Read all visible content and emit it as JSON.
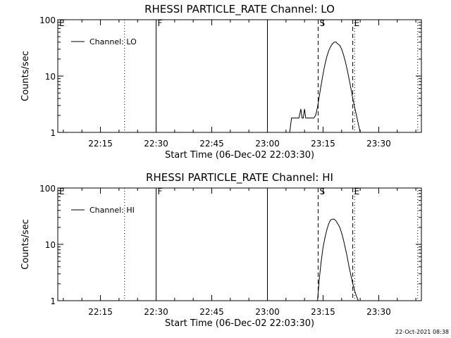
{
  "footer": {
    "timestamp": "22-Oct-2021 08:38"
  },
  "chart_data": [
    {
      "type": "line",
      "title": "RHESSI PARTICLE_RATE Channel: LO",
      "xlabel": "Start Time (06-Dec-02 22:03:30)",
      "ylabel": "Counts/sec",
      "yscale": "log",
      "ylim": [
        1,
        100
      ],
      "xlim": [
        "22:03:30",
        "23:41:30"
      ],
      "x_ticks": [
        "22:15",
        "22:30",
        "22:45",
        "23:00",
        "23:15",
        "23:30"
      ],
      "y_ticks": [
        "1",
        "10",
        "100"
      ],
      "legend": {
        "placement": "top-left",
        "entries": [
          "Channel: LO"
        ]
      },
      "markers": [
        {
          "label": "E",
          "time": "22:03:30",
          "style": "none"
        },
        {
          "label": "",
          "time": "22:21:30",
          "style": "dotted"
        },
        {
          "label": "F",
          "time": "22:30:00",
          "style": "solid"
        },
        {
          "label": "",
          "time": "23:00:00",
          "style": "solid"
        },
        {
          "label": "S",
          "time": "23:13:40",
          "style": "dashed"
        },
        {
          "label": "E",
          "time": "23:23:00",
          "style": "dashed"
        },
        {
          "label": "",
          "time": "23:23:30",
          "style": "dotted"
        },
        {
          "label": "",
          "time": "23:40:30",
          "style": "dotted"
        }
      ],
      "series": [
        {
          "x": [
            "23:06:00",
            "23:06:30",
            "23:07:30",
            "23:08:30",
            "23:09:00",
            "23:09:20",
            "23:09:40",
            "23:10:00",
            "23:10:20",
            "23:10:40",
            "23:11:00",
            "23:11:30",
            "23:12:00",
            "23:12:30",
            "23:13:00",
            "23:13:30",
            "23:14:00",
            "23:14:30",
            "23:15:00",
            "23:15:30",
            "23:16:00",
            "23:16:30",
            "23:17:00",
            "23:17:30",
            "23:18:00",
            "23:18:30",
            "23:19:00",
            "23:19:30",
            "23:20:00",
            "23:20:30",
            "23:21:00",
            "23:21:30",
            "23:22:00",
            "23:22:30",
            "23:23:00",
            "23:23:30",
            "23:24:00",
            "23:24:30",
            "23:25:00"
          ],
          "y": [
            1.0,
            1.8,
            1.8,
            1.8,
            2.6,
            1.8,
            1.8,
            2.6,
            1.8,
            1.8,
            1.8,
            1.8,
            1.8,
            1.8,
            2.0,
            2.8,
            4.5,
            7,
            11,
            16,
            22,
            28,
            33,
            37,
            40,
            40,
            37,
            35,
            30,
            24,
            18,
            13,
            9,
            6,
            4,
            2.8,
            2.0,
            1.4,
            1.0
          ]
        }
      ]
    },
    {
      "type": "line",
      "title": "RHESSI PARTICLE_RATE Channel: HI",
      "xlabel": "Start Time (06-Dec-02 22:03:30)",
      "ylabel": "Counts/sec",
      "yscale": "log",
      "ylim": [
        1,
        100
      ],
      "xlim": [
        "22:03:30",
        "23:41:30"
      ],
      "x_ticks": [
        "22:15",
        "22:30",
        "22:45",
        "23:00",
        "23:15",
        "23:30"
      ],
      "y_ticks": [
        "1",
        "10",
        "100"
      ],
      "legend": {
        "placement": "top-left",
        "entries": [
          "Channel: HI"
        ]
      },
      "markers": [
        {
          "label": "E",
          "time": "22:03:30",
          "style": "none"
        },
        {
          "label": "",
          "time": "22:21:30",
          "style": "dotted"
        },
        {
          "label": "F",
          "time": "22:30:00",
          "style": "solid"
        },
        {
          "label": "",
          "time": "23:00:00",
          "style": "solid"
        },
        {
          "label": "S",
          "time": "23:13:40",
          "style": "dashed"
        },
        {
          "label": "E",
          "time": "23:23:00",
          "style": "dashed"
        },
        {
          "label": "",
          "time": "23:23:30",
          "style": "dotted"
        },
        {
          "label": "",
          "time": "23:40:30",
          "style": "dotted"
        }
      ],
      "series": [
        {
          "x": [
            "23:13:30",
            "23:14:00",
            "23:14:30",
            "23:15:00",
            "23:15:30",
            "23:16:00",
            "23:16:30",
            "23:17:00",
            "23:17:30",
            "23:18:00",
            "23:18:30",
            "23:19:00",
            "23:19:30",
            "23:20:00",
            "23:20:30",
            "23:21:00",
            "23:21:30",
            "23:22:00",
            "23:22:30",
            "23:23:00",
            "23:23:30",
            "23:24:00",
            "23:24:30"
          ],
          "y": [
            1.0,
            2.5,
            5,
            9,
            13,
            18,
            23,
            27,
            28,
            28,
            26,
            23,
            20,
            16,
            12,
            8.5,
            6,
            4,
            2.8,
            2.0,
            1.5,
            1.2,
            1.0
          ]
        }
      ]
    }
  ]
}
